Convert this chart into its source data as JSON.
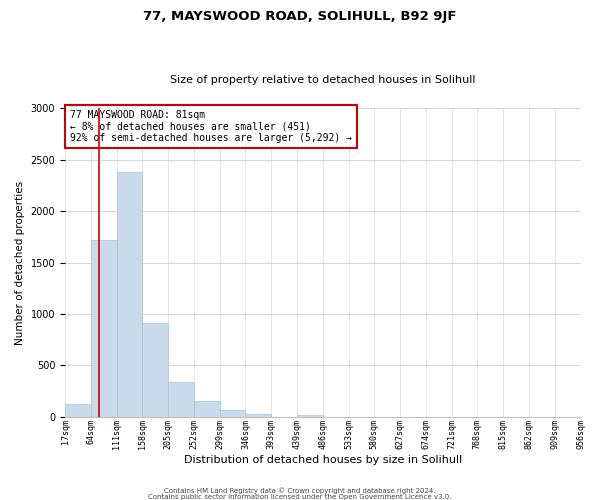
{
  "title": "77, MAYSWOOD ROAD, SOLIHULL, B92 9JF",
  "subtitle": "Size of property relative to detached houses in Solihull",
  "xlabel": "Distribution of detached houses by size in Solihull",
  "ylabel": "Number of detached properties",
  "bar_values": [
    120,
    1720,
    2380,
    910,
    340,
    150,
    65,
    30,
    0,
    20,
    0,
    0,
    0,
    0,
    0,
    0,
    0,
    0,
    0,
    0
  ],
  "bar_labels": [
    "17sqm",
    "64sqm",
    "111sqm",
    "158sqm",
    "205sqm",
    "252sqm",
    "299sqm",
    "346sqm",
    "393sqm",
    "439sqm",
    "486sqm",
    "533sqm",
    "580sqm",
    "627sqm",
    "674sqm",
    "721sqm",
    "768sqm",
    "815sqm",
    "862sqm",
    "909sqm",
    "956sqm"
  ],
  "bar_color": "#c9daea",
  "bar_edgecolor": "#a8c4d8",
  "vline_x": 1.32,
  "vline_color": "#cc0000",
  "annotation_box_text": "77 MAYSWOOD ROAD: 81sqm\n← 8% of detached houses are smaller (451)\n92% of semi-detached houses are larger (5,292) →",
  "annotation_box_color": "#cc0000",
  "ylim": [
    0,
    3000
  ],
  "yticks": [
    0,
    500,
    1000,
    1500,
    2000,
    2500,
    3000
  ],
  "footer_line1": "Contains HM Land Registry data © Crown copyright and database right 2024.",
  "footer_line2": "Contains public sector information licensed under the Open Government Licence v3.0.",
  "background_color": "#ffffff",
  "grid_color": "#d0d0d0",
  "title_fontsize": 9.5,
  "subtitle_fontsize": 8,
  "ylabel_fontsize": 7.5,
  "xlabel_fontsize": 8,
  "tick_fontsize": 6,
  "annot_fontsize": 7,
  "footer_fontsize": 5
}
